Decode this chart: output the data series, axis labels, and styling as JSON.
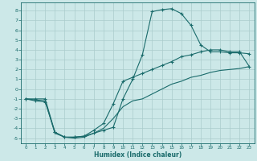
{
  "xlabel": "Humidex (Indice chaleur)",
  "bg_color": "#cce8e8",
  "grid_color": "#aacccc",
  "line_color": "#1a6b6b",
  "xlim": [
    -0.5,
    23.5
  ],
  "ylim": [
    -5.5,
    8.8
  ],
  "xticks": [
    0,
    1,
    2,
    3,
    4,
    5,
    6,
    7,
    8,
    9,
    10,
    11,
    12,
    13,
    14,
    15,
    16,
    17,
    18,
    19,
    20,
    21,
    22,
    23
  ],
  "yticks": [
    -5,
    -4,
    -3,
    -2,
    -1,
    0,
    1,
    2,
    3,
    4,
    5,
    6,
    7,
    8
  ],
  "line1_x": [
    0,
    1,
    2,
    3,
    4,
    5,
    6,
    7,
    8,
    9,
    10,
    11,
    12,
    13,
    14,
    15,
    16,
    17,
    18,
    19,
    20,
    21,
    22,
    23
  ],
  "line1_y": [
    -1.0,
    -1.2,
    -1.3,
    -4.4,
    -4.9,
    -4.9,
    -4.8,
    -4.5,
    -4.2,
    -3.9,
    -1.0,
    1.0,
    3.5,
    7.9,
    8.1,
    8.2,
    7.7,
    6.5,
    4.5,
    3.8,
    3.8,
    3.7,
    3.7,
    3.6
  ],
  "line2_x": [
    0,
    1,
    2,
    3,
    4,
    5,
    6,
    7,
    8,
    9,
    10,
    11,
    12,
    13,
    14,
    15,
    16,
    17,
    18,
    19,
    20,
    21,
    22,
    23
  ],
  "line2_y": [
    -1.0,
    -1.0,
    -1.0,
    -4.4,
    -4.9,
    -4.9,
    -4.8,
    -4.2,
    -3.5,
    -1.5,
    0.8,
    1.2,
    1.6,
    2.0,
    2.4,
    2.8,
    3.3,
    3.5,
    3.8,
    4.0,
    4.0,
    3.8,
    3.8,
    2.3
  ],
  "line3_x": [
    0,
    1,
    2,
    3,
    4,
    5,
    6,
    7,
    8,
    9,
    10,
    11,
    12,
    13,
    14,
    15,
    16,
    17,
    18,
    19,
    20,
    21,
    22,
    23
  ],
  "line3_y": [
    -1.0,
    -1.1,
    -1.2,
    -4.5,
    -4.9,
    -5.0,
    -4.9,
    -4.5,
    -4.0,
    -3.0,
    -1.8,
    -1.2,
    -1.0,
    -0.5,
    0.0,
    0.5,
    0.8,
    1.2,
    1.4,
    1.7,
    1.9,
    2.0,
    2.1,
    2.3
  ],
  "xlabel_fontsize": 5.5,
  "ytick_fontsize": 4.5,
  "xtick_fontsize": 4.0,
  "linewidth": 0.8,
  "markersize": 2.5
}
